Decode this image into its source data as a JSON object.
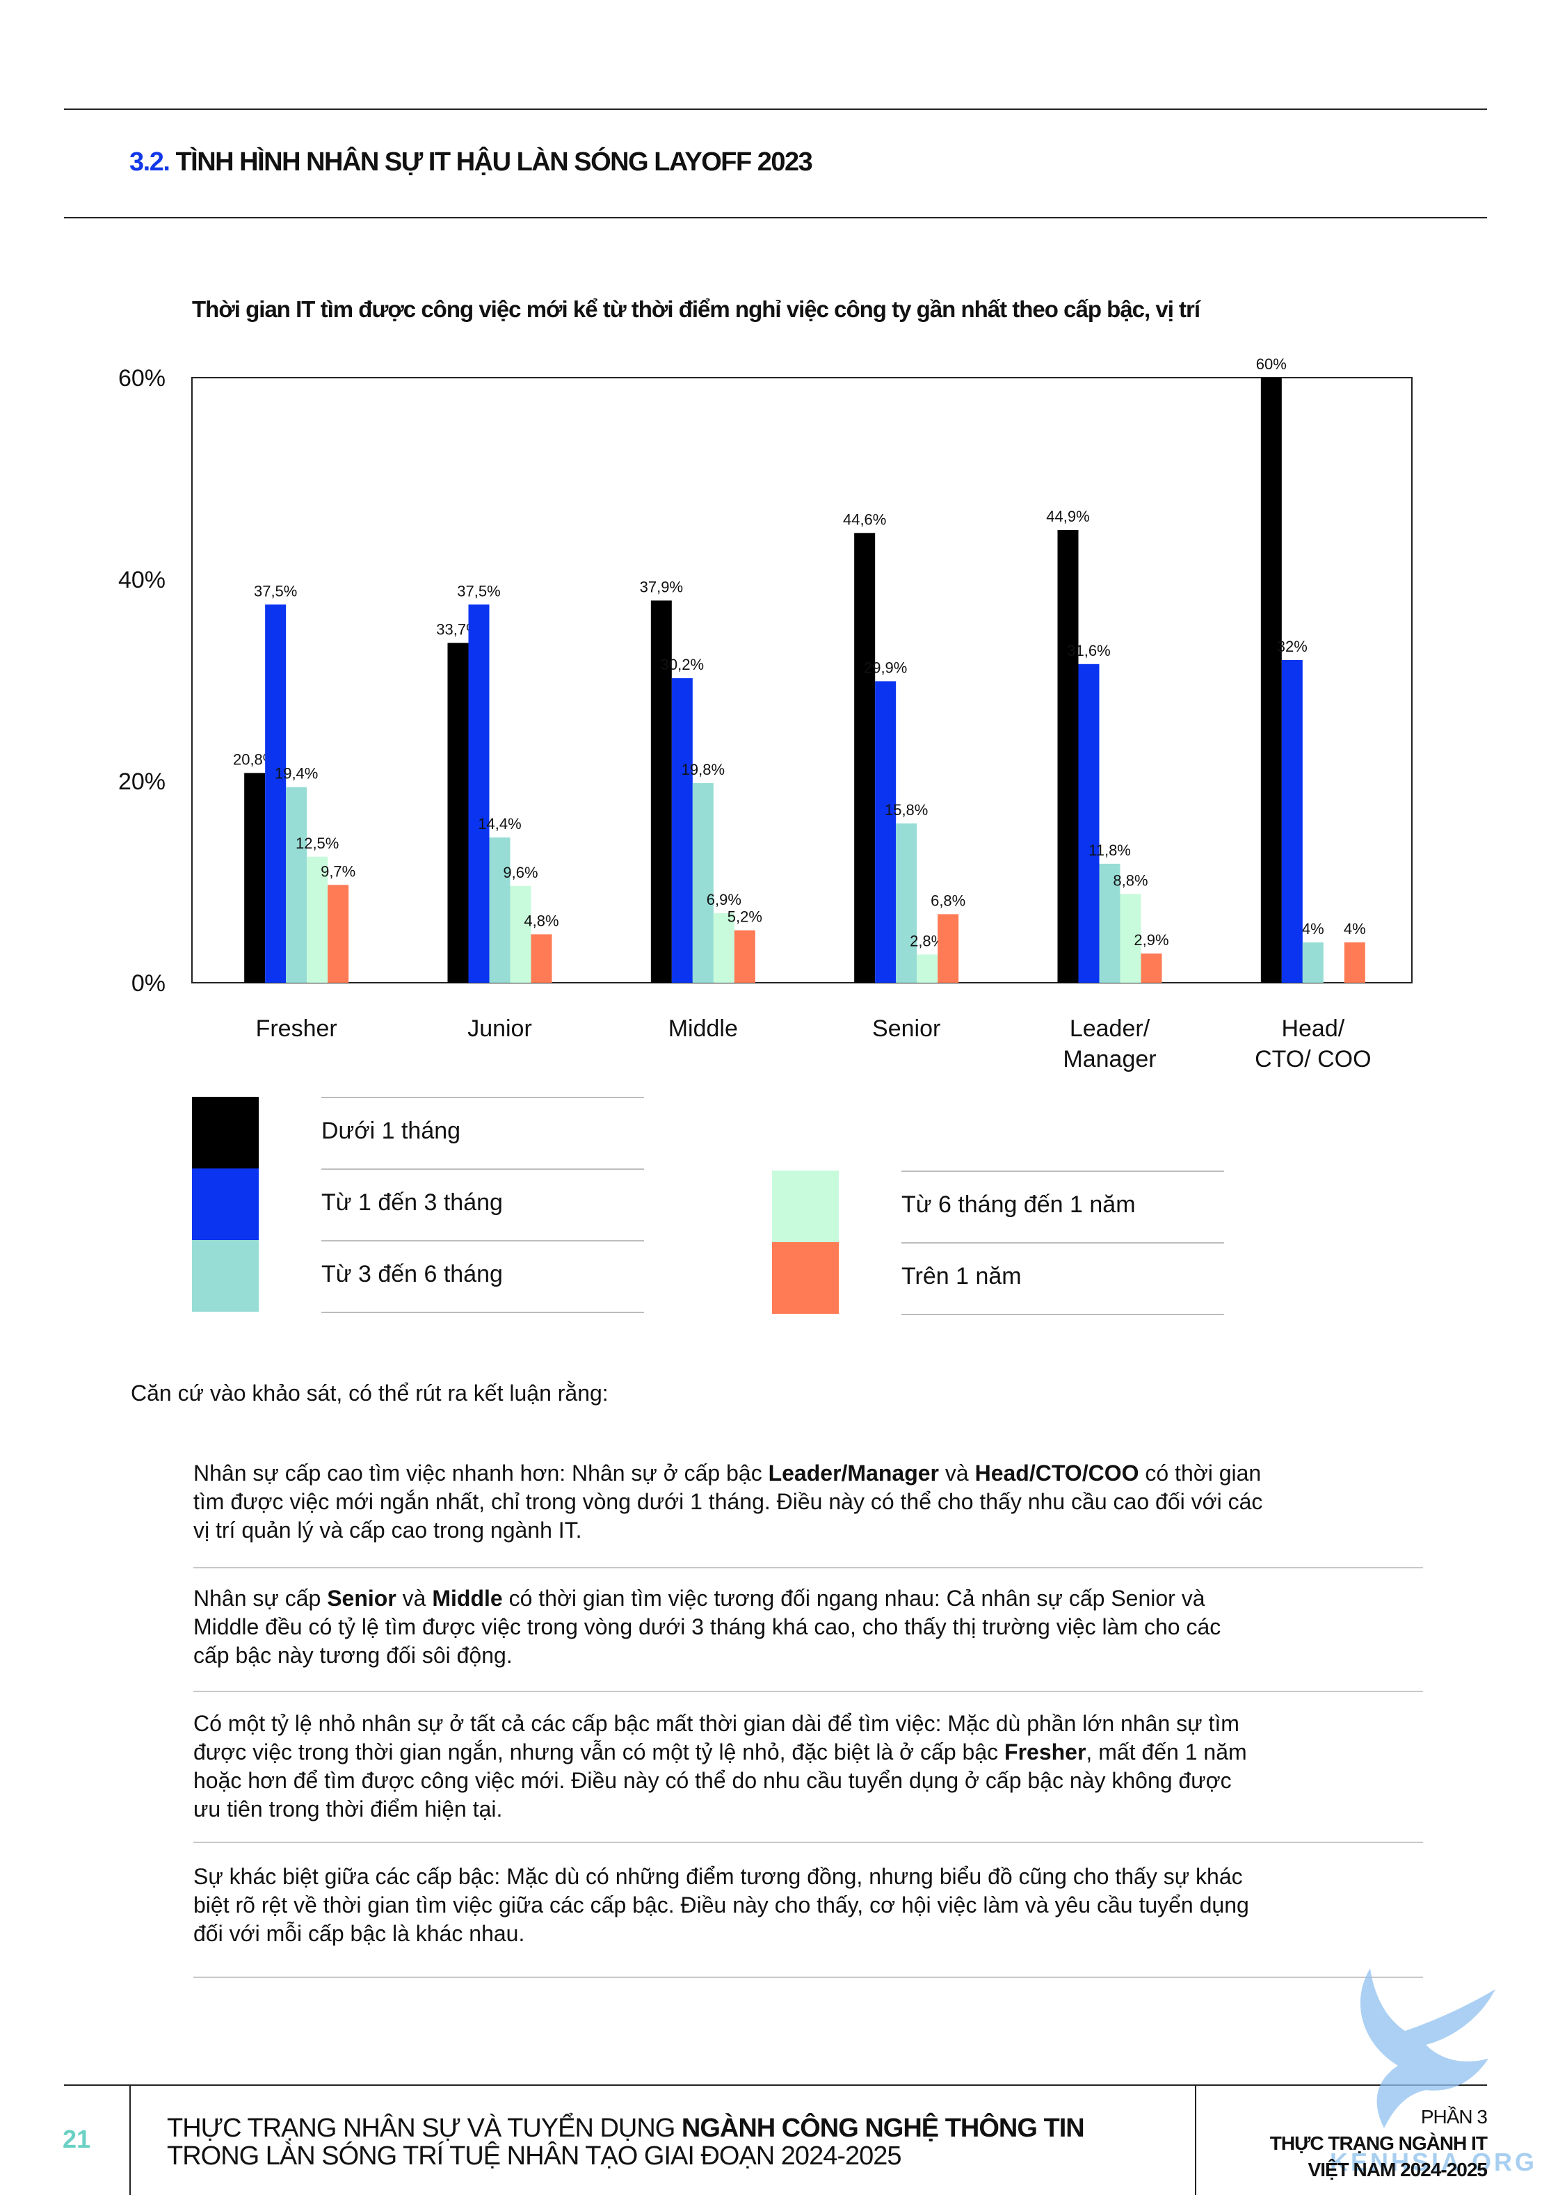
{
  "section": {
    "number": "3.2.",
    "title": "TÌNH HÌNH NHÂN SỰ IT HẬU LÀN SÓNG LAYOFF 2023"
  },
  "chart_data": {
    "type": "bar",
    "title": "Thời gian IT tìm được công việc mới kể từ thời điểm nghỉ việc công ty gần nhất theo cấp bậc, vị trí",
    "categories": [
      [
        "Fresher"
      ],
      [
        "Junior"
      ],
      [
        "Middle"
      ],
      [
        "Senior"
      ],
      [
        "Leader/",
        "Manager"
      ],
      [
        "Head/",
        "CTO/ COO"
      ]
    ],
    "ylim": [
      0,
      60
    ],
    "yticks": [
      0,
      20,
      40,
      60
    ],
    "ytick_labels": [
      "0%",
      "20%",
      "40%",
      "60%"
    ],
    "grid": false,
    "legend_position": "bottom",
    "series": [
      {
        "name": "Dưới 1 tháng",
        "color": "#000000",
        "values": [
          20.8,
          33.7,
          37.9,
          44.6,
          44.9,
          60
        ],
        "labels": [
          "20,8%",
          "33,7%",
          "37,9%",
          "44,6%",
          "44,9%",
          "60%"
        ]
      },
      {
        "name": "Từ 1 đến 3 tháng",
        "color": "#0a34f0",
        "values": [
          37.5,
          37.5,
          30.2,
          29.9,
          31.6,
          32
        ],
        "labels": [
          "37,5%",
          "37,5%",
          "30,2%",
          "29,9%",
          "31,6%",
          "32%"
        ]
      },
      {
        "name": "Từ 3 đến 6 tháng",
        "color": "#97ddd5",
        "values": [
          19.4,
          14.4,
          19.8,
          15.8,
          11.8,
          4
        ],
        "labels": [
          "19,4%",
          "14,4%",
          "19,8%",
          "15,8%",
          "11,8%",
          "4%"
        ]
      },
      {
        "name": "Từ 6 tháng đến 1 năm",
        "color": "#c8fbdc",
        "values": [
          12.5,
          9.6,
          6.9,
          2.8,
          8.8,
          0
        ],
        "labels": [
          "12,5%",
          "9,6%",
          "6,9%",
          "2,8%",
          "8,8%",
          ""
        ]
      },
      {
        "name": "Trên 1 năm",
        "color": "#ff7b55",
        "values": [
          9.7,
          4.8,
          5.2,
          6.8,
          2.9,
          4
        ],
        "labels": [
          "9,7%",
          "4,8%",
          "5,2%",
          "6,8%",
          "2,9%",
          "4%"
        ]
      }
    ]
  },
  "body": {
    "intro": "Căn cứ vào khảo sát, có thể rút ra kết luận rằng:",
    "paragraphs": [
      [
        [
          {
            "t": "Nhân sự cấp cao tìm việc nhanh hơn: Nhân sự ở cấp bậc "
          },
          {
            "t": "Leader/Manager",
            "b": true
          },
          {
            "t": " và "
          },
          {
            "t": "Head/CTO/COO",
            "b": true
          },
          {
            "t": " có thời gian"
          }
        ],
        [
          {
            "t": "tìm được việc mới ngắn nhất, chỉ trong vòng dưới 1 tháng. Điều này có thể cho thấy nhu cầu cao đối với các"
          }
        ],
        [
          {
            "t": "vị trí quản lý và cấp cao trong ngành IT."
          }
        ]
      ],
      [
        [
          {
            "t": "Nhân sự cấp "
          },
          {
            "t": "Senior",
            "b": true
          },
          {
            "t": " và "
          },
          {
            "t": "Middle",
            "b": true
          },
          {
            "t": " có thời gian tìm việc tương đối ngang nhau: Cả nhân sự cấp Senior và"
          }
        ],
        [
          {
            "t": "Middle đều có tỷ lệ tìm được việc trong vòng dưới 3 tháng khá cao, cho thấy thị trường việc làm cho các"
          }
        ],
        [
          {
            "t": "cấp bậc này tương đối sôi động."
          }
        ]
      ],
      [
        [
          {
            "t": "Có một tỷ lệ nhỏ nhân sự ở tất cả các cấp bậc mất thời gian dài để tìm việc: Mặc dù phần lớn nhân sự tìm"
          }
        ],
        [
          {
            "t": "được việc trong thời gian ngắn, nhưng vẫn có một tỷ lệ nhỏ, đặc biệt là ở cấp bậc "
          },
          {
            "t": "Fresher",
            "b": true
          },
          {
            "t": ", mất đến 1 năm"
          }
        ],
        [
          {
            "t": "hoặc hơn để tìm được công việc mới. Điều này có thể do nhu cầu tuyển dụng ở cấp bậc này không được"
          }
        ],
        [
          {
            "t": "ưu tiên trong thời điểm hiện tại."
          }
        ]
      ],
      [
        [
          {
            "t": "Sự khác biệt giữa các cấp bậc: Mặc dù có những điểm tương đồng, nhưng biểu đồ cũng cho thấy sự khác"
          }
        ],
        [
          {
            "t": "biệt rõ rệt về thời gian tìm việc giữa các cấp bậc. Điều này cho thấy, cơ hội việc làm và yêu cầu tuyển dụng"
          }
        ],
        [
          {
            "t": "đối với mỗi cấp bậc là khác nhau."
          }
        ]
      ]
    ]
  },
  "footer": {
    "page_number": "21",
    "line1_normal": "THỰC TRẠNG NHÂN SỰ VÀ TUYỂN DỤNG ",
    "line1_bold": "NGÀNH CÔNG NGHỆ THÔNG TIN",
    "line2": "TRONG LÀN SÓNG TRÍ TUỆ NHÂN TẠO GIAI ĐOẠN 2024-2025",
    "part": "PHẦN 3",
    "part_title_1": "THỰC TRẠNG NGÀNH IT",
    "part_title_2": "VIỆT NAM 2024-2025"
  },
  "watermark": {
    "text": "KENHSIA.ORG"
  }
}
